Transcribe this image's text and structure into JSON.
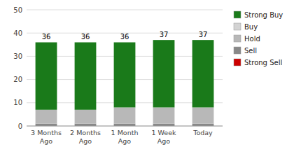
{
  "chart_data": {
    "type": "bar",
    "stacked": true,
    "categories": [
      "3 Months\nAgo",
      "2 Months\nAgo",
      "1 Month\nAgo",
      "1 Week\nAgo",
      "Today"
    ],
    "series": [
      {
        "name": "Strong Buy",
        "color": "#1a7a1a",
        "values": [
          29,
          29,
          28,
          29,
          29
        ]
      },
      {
        "name": "Buy",
        "color": "#d3d3d3",
        "values": [
          0,
          0,
          0,
          0,
          0
        ]
      },
      {
        "name": "Hold",
        "color": "#b8b8b8",
        "values": [
          6,
          6,
          7,
          7,
          7
        ]
      },
      {
        "name": "Sell",
        "color": "#888888",
        "values": [
          1,
          1,
          1,
          1,
          1
        ]
      },
      {
        "name": "Strong Sell",
        "color": "#cc0000",
        "values": [
          0,
          0,
          0,
          0,
          0
        ]
      }
    ],
    "totals": [
      36,
      36,
      36,
      37,
      37
    ],
    "ylim": [
      0,
      50
    ],
    "yticks": [
      0,
      10,
      20,
      30,
      40,
      50
    ],
    "grid": true,
    "legend": "right"
  }
}
